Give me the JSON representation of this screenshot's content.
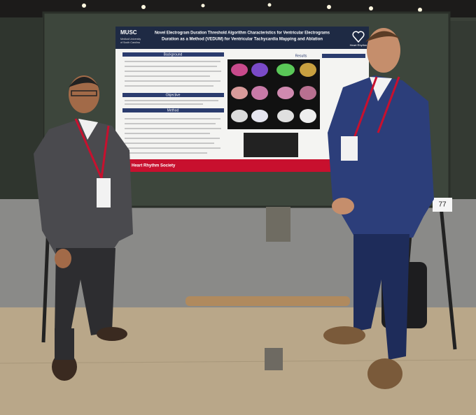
{
  "poster": {
    "institution": [
      "MUSC",
      "Medical University",
      "of South Carolina"
    ],
    "title": [
      "Novel Electrogram Duration Threshold Algorithm Characteristics for Ventricular Electrograms",
      "Duration as a Method (VEDUM) for Ventricular Tachycardia Mapping and Ablation"
    ],
    "sections": [
      "Background",
      "Objective",
      "Method",
      "Results"
    ],
    "footer": "Heart Rhythm Society",
    "sponsor": "Heart Rhythm"
  },
  "booth_number": "77"
}
